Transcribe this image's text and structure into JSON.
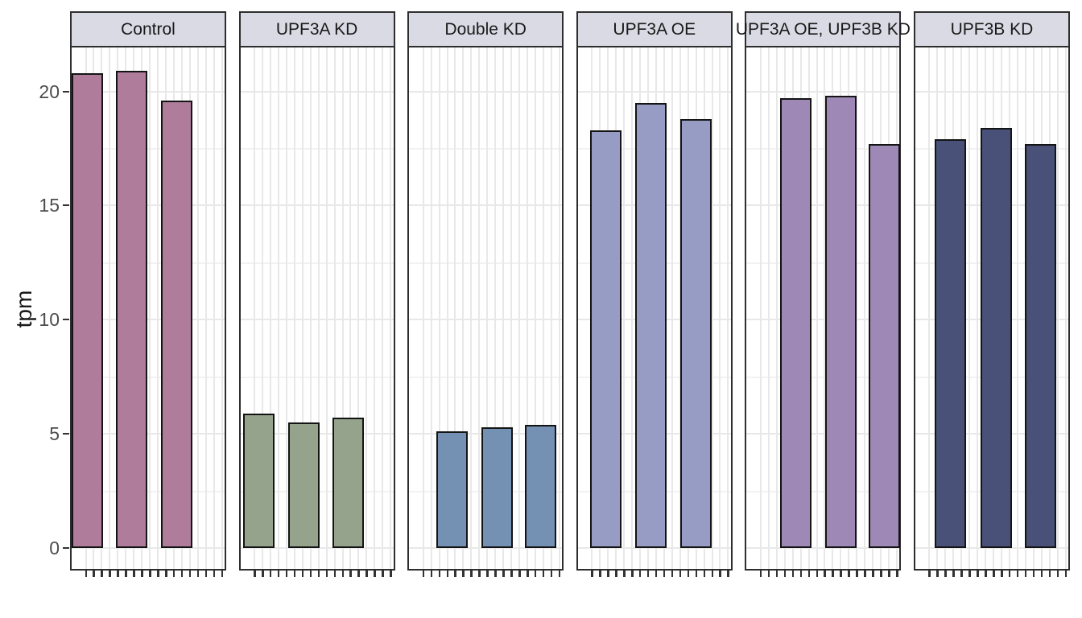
{
  "chart_data": {
    "type": "bar",
    "title": "",
    "xlabel": "",
    "ylabel": "tpm",
    "y_ticks": [
      0,
      5,
      10,
      15,
      20
    ],
    "ylim": [
      -1,
      21.9
    ],
    "y_minor_gridlines": [
      2.5,
      7.5,
      12.5,
      17.5
    ],
    "grid": "on",
    "legend": "none",
    "x_tick_labels_visible": false,
    "x_ticks_per_facet": 18,
    "strip_fill": "#d9dae4",
    "panel_border_color": "#2e2e2e",
    "bar_outline_color": "#141414",
    "facets": [
      {
        "label": "Control",
        "color": "#af7c9b",
        "values": [
          20.8,
          20.9,
          19.6
        ],
        "bar_offsets": [
          2,
          57,
          113
        ]
      },
      {
        "label": "UPF3A KD",
        "color": "#95a38d",
        "values": [
          5.9,
          5.5,
          5.7
        ],
        "bar_offsets": [
          5,
          61,
          116
        ]
      },
      {
        "label": "Double KD",
        "color": "#7491b4",
        "values": [
          5.1,
          5.3,
          5.4
        ],
        "bar_offsets": [
          36,
          92,
          146
        ]
      },
      {
        "label": "UPF3A OE",
        "color": "#979cc4",
        "values": [
          18.3,
          19.5,
          18.8
        ],
        "bar_offsets": [
          17,
          73,
          129
        ]
      },
      {
        "label": "UPF3A OE, UPF3B KD",
        "color": "#9e88b6",
        "values": [
          19.7,
          19.8,
          17.7
        ],
        "bar_offsets": [
          44,
          100,
          154
        ]
      },
      {
        "label": "UPF3B KD",
        "color": "#495179",
        "values": [
          17.9,
          18.4,
          17.7
        ],
        "bar_offsets": [
          26,
          83,
          138
        ]
      }
    ]
  }
}
